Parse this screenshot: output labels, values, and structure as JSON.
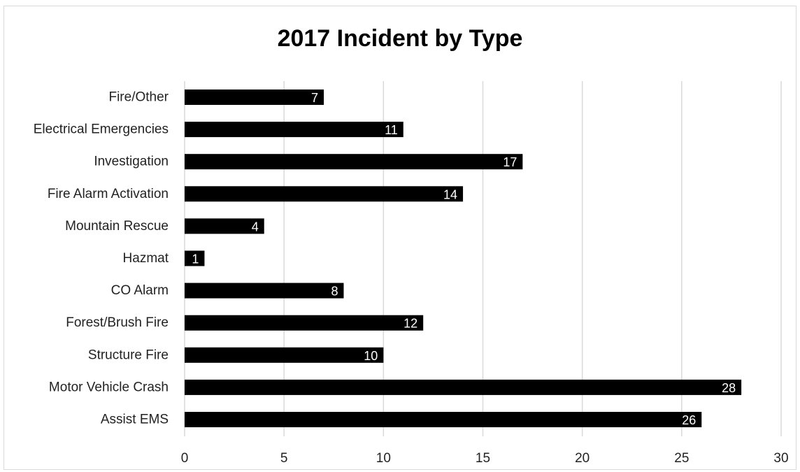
{
  "chart_data": {
    "type": "bar",
    "orientation": "horizontal",
    "title": "2017 Incident by Type",
    "xlabel": "",
    "ylabel": "",
    "categories": [
      "Fire/Other",
      "Electrical Emergencies",
      "Investigation",
      "Fire Alarm Activation",
      "Mountain Rescue",
      "Hazmat",
      "CO Alarm",
      "Forest/Brush Fire",
      "Structure Fire",
      "Motor Vehicle Crash",
      "Assist EMS"
    ],
    "values": [
      7,
      11,
      17,
      14,
      4,
      1,
      8,
      12,
      10,
      28,
      26
    ],
    "xlim": [
      0,
      30
    ],
    "xticks": [
      0,
      5,
      10,
      15,
      20,
      25,
      30
    ],
    "grid": "vertical",
    "legend": "none",
    "bar_color": "#000000",
    "data_label_color": "#ffffff",
    "grid_color": "#d9d9d9"
  }
}
